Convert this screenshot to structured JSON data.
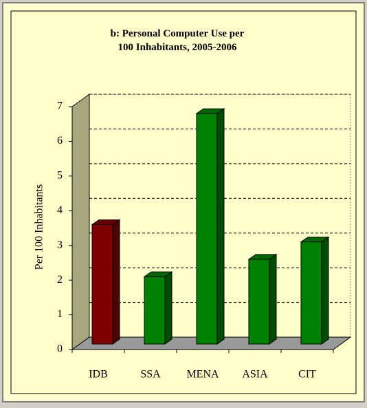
{
  "chart_data": {
    "type": "bar",
    "title": "b: Personal Computer Use per 100 Inhabitants, 2005-2006",
    "y_label": "Per 100 Inhabitants",
    "categories": [
      "IDB",
      "SSA",
      "MENA",
      "ASIA",
      "CIT"
    ],
    "values": [
      3.6,
      2.1,
      6.8,
      2.6,
      3.1
    ],
    "colors": [
      "#800000",
      "#008000",
      "#008000",
      "#008000",
      "#008000"
    ],
    "ylim": [
      0,
      7
    ],
    "yticks": [
      0,
      1,
      2,
      3,
      4,
      5,
      6,
      7
    ],
    "grid": true
  }
}
